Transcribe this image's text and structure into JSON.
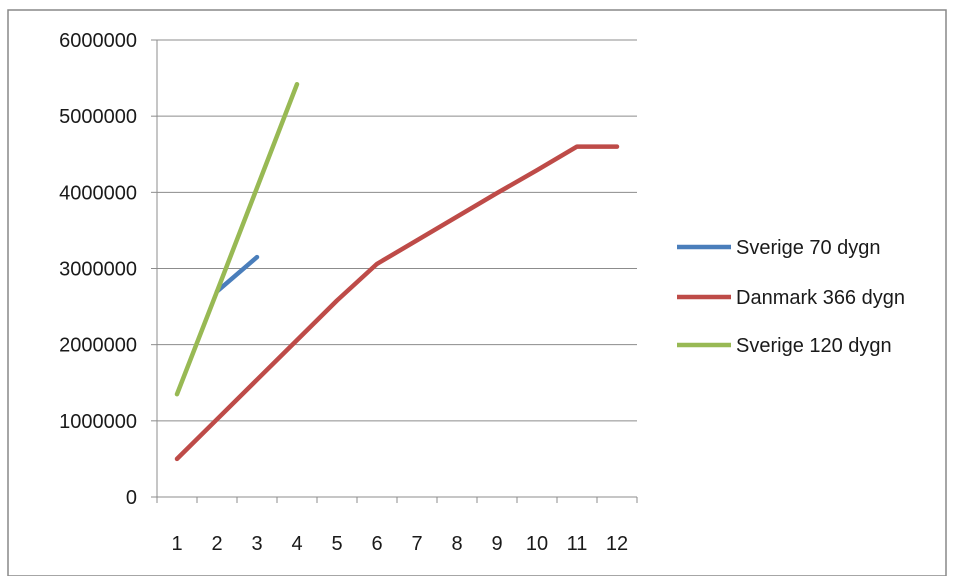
{
  "chart_data": {
    "type": "line",
    "title": "",
    "xlabel": "",
    "ylabel": "",
    "categories": [
      "1",
      "2",
      "3",
      "4",
      "5",
      "6",
      "7",
      "8",
      "9",
      "10",
      "11",
      "12"
    ],
    "ylim": [
      0,
      6000000
    ],
    "yticks": [
      0,
      1000000,
      2000000,
      3000000,
      4000000,
      5000000,
      6000000
    ],
    "ytick_labels": [
      "0",
      "1000000",
      "2000000",
      "3000000",
      "4000000",
      "5000000",
      "6000000"
    ],
    "grid": "horizontal",
    "legend_position": "right",
    "series": [
      {
        "name": "Sverige 70 dygn",
        "color": "#4a7ebb",
        "values": [
          null,
          2700000,
          3150000,
          null,
          null,
          null,
          null,
          null,
          null,
          null,
          null,
          null
        ]
      },
      {
        "name": "Danmark 366 dygn",
        "color": "#be4b48",
        "values": [
          500000,
          1020000,
          1540000,
          2060000,
          2580000,
          3060000,
          3370000,
          3680000,
          3990000,
          4290000,
          4600000,
          4600000
        ]
      },
      {
        "name": "Sverige 120 dygn",
        "color": "#98b954",
        "values": [
          1350000,
          2700000,
          4060000,
          5420000,
          null,
          null,
          null,
          null,
          null,
          null,
          null,
          null
        ]
      }
    ]
  }
}
